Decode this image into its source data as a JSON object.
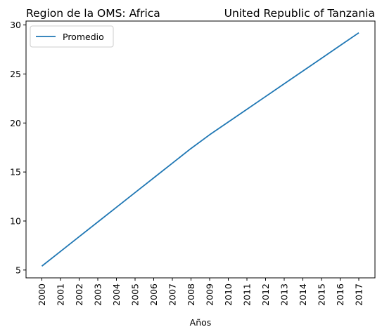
{
  "chart_data": {
    "type": "line",
    "title_left": "Region de la OMS: Africa",
    "title_right": "United Republic of Tanzania",
    "xlabel": "Años",
    "ylabel": "",
    "x": [
      "2000",
      "2001",
      "2002",
      "2003",
      "2004",
      "2005",
      "2006",
      "2007",
      "2008",
      "2009",
      "2010",
      "2011",
      "2012",
      "2013",
      "2014",
      "2015",
      "2016",
      "2017"
    ],
    "yticks": [
      5,
      10,
      15,
      20,
      25,
      30
    ],
    "ylim": [
      4.2,
      30.4
    ],
    "grid": false,
    "legend_position": "top-left",
    "series": [
      {
        "name": "Promedio",
        "color": "#1f77b4",
        "values": [
          5.4,
          6.9,
          8.4,
          9.9,
          11.4,
          12.9,
          14.4,
          15.9,
          17.4,
          18.8,
          20.1,
          21.4,
          22.7,
          24.0,
          25.3,
          26.6,
          27.9,
          29.2
        ]
      }
    ]
  }
}
